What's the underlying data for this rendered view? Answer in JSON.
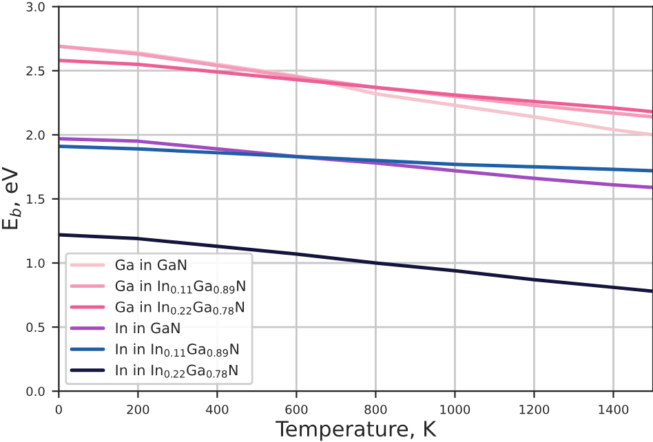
{
  "chart_data": {
    "type": "line",
    "xlabel": "Temperature, K",
    "ylabel": "E$_{b}$, eV",
    "x": [
      0,
      200,
      400,
      600,
      800,
      1000,
      1200,
      1400,
      1500
    ],
    "series": [
      {
        "name": "Ga in GaN",
        "color": "#f5c4cd",
        "values": [
          2.69,
          2.64,
          2.55,
          2.46,
          2.32,
          2.23,
          2.14,
          2.04,
          2.0
        ]
      },
      {
        "name": "Ga in In$_{0.11}$Ga$_{0.89}$N",
        "color": "#f59ab8",
        "values": [
          2.69,
          2.63,
          2.54,
          2.45,
          2.37,
          2.3,
          2.23,
          2.17,
          2.14
        ]
      },
      {
        "name": "Ga in In$_{0.22}$Ga$_{0.78}$N",
        "color": "#ec5f94",
        "values": [
          2.58,
          2.55,
          2.49,
          2.43,
          2.37,
          2.31,
          2.26,
          2.21,
          2.18
        ]
      },
      {
        "name": "In in GaN",
        "color": "#a04cc0",
        "values": [
          1.97,
          1.95,
          1.89,
          1.83,
          1.78,
          1.72,
          1.66,
          1.61,
          1.59
        ]
      },
      {
        "name": "In in In$_{0.11}$Ga$_{0.89}$N",
        "color": "#1f5fa8",
        "values": [
          1.91,
          1.89,
          1.86,
          1.83,
          1.8,
          1.77,
          1.75,
          1.73,
          1.72
        ]
      },
      {
        "name": "In in In$_{0.22}$Ga$_{0.78}$N",
        "color": "#14143c",
        "values": [
          1.22,
          1.19,
          1.13,
          1.07,
          1.0,
          0.94,
          0.87,
          0.81,
          0.78
        ]
      }
    ],
    "xlim": [
      0,
      1500
    ],
    "xticks": [
      0,
      200,
      400,
      600,
      800,
      1000,
      1200,
      1400
    ],
    "ylim": [
      0,
      3
    ],
    "yticks": [
      {
        "value": 0,
        "label": "0.0"
      },
      {
        "value": 0.5,
        "label": "0.5"
      },
      {
        "value": 1,
        "label": "1.0"
      },
      {
        "value": 1.5,
        "label": "1.5"
      },
      {
        "value": 2,
        "label": "2.0"
      },
      {
        "value": 2.5,
        "label": "2.5"
      },
      {
        "value": 3,
        "label": "3.0"
      }
    ],
    "grid": true,
    "legend": "lower left",
    "line_style": "solid",
    "marker": "none"
  }
}
